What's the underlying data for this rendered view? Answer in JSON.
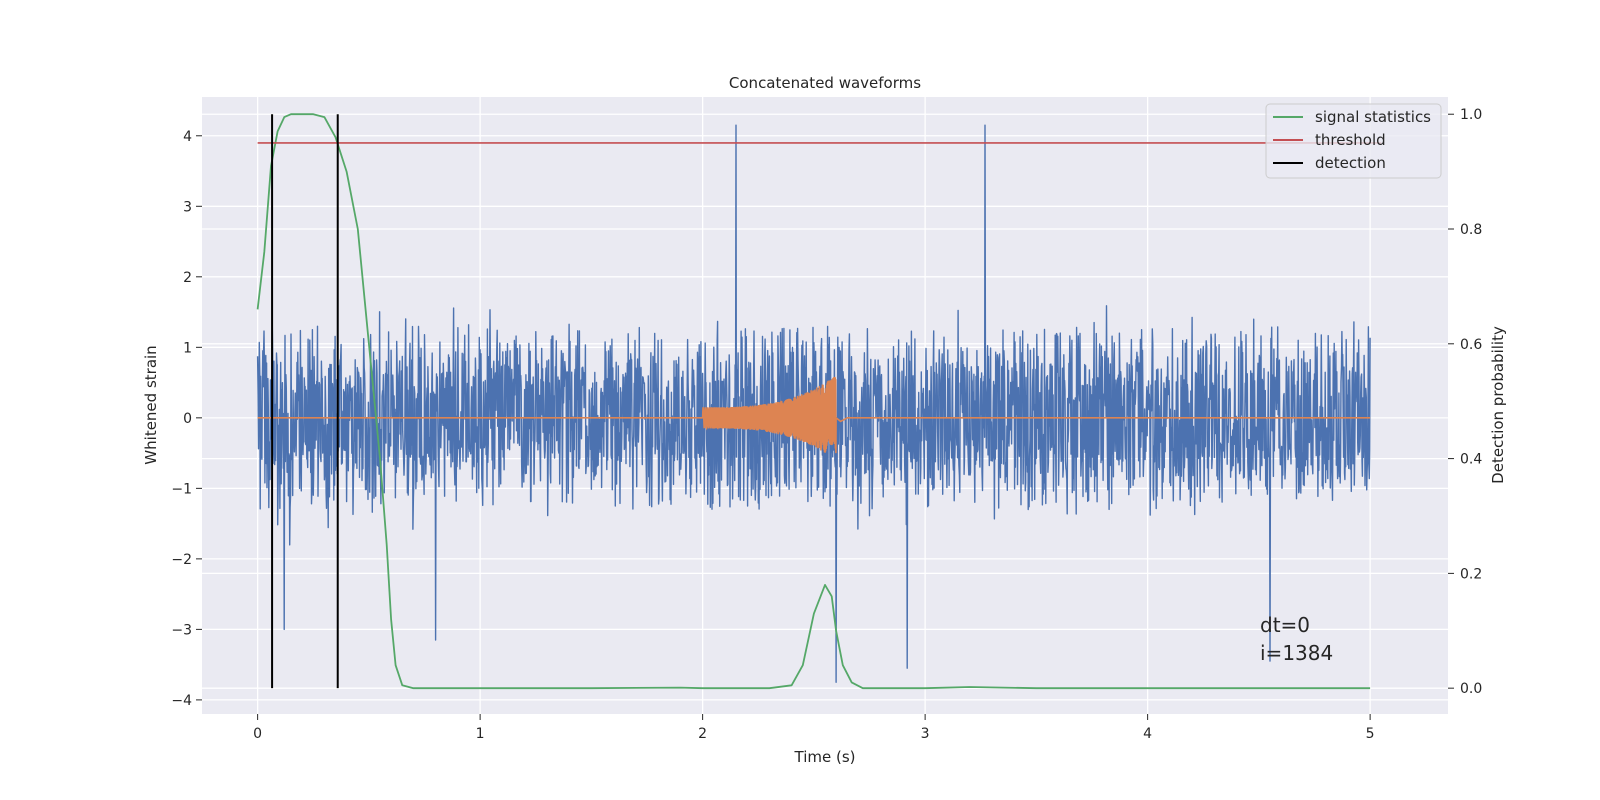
{
  "chart_data": {
    "type": "line",
    "title": "Concatenated waveforms",
    "xlabel": "Time (s)",
    "ylabel": "Whitened strain",
    "y2label": "Detection probability",
    "xlim": [
      -0.25,
      5.35
    ],
    "ylim": [
      -4.2,
      4.55
    ],
    "y2lim": [
      -0.045,
      1.03
    ],
    "xticks": [
      0,
      1,
      2,
      3,
      4,
      5
    ],
    "xtick_labels": [
      "0",
      "1",
      "2",
      "3",
      "4",
      "5"
    ],
    "yticks": [
      -4,
      -3,
      -2,
      -1,
      0,
      1,
      2,
      3,
      4
    ],
    "ytick_labels": [
      "−4",
      "−3",
      "−2",
      "−1",
      "0",
      "1",
      "2",
      "3",
      "4"
    ],
    "y2ticks": [
      0.0,
      0.2,
      0.4,
      0.6,
      0.8,
      1.0
    ],
    "y2tick_labels": [
      "0.0",
      "0.2",
      "0.4",
      "0.6",
      "0.8",
      "1.0"
    ],
    "grid": true,
    "legend_position": "top-right",
    "annotations": [
      "dt=0",
      "i=1384"
    ],
    "series": [
      {
        "kind": "noise-strain",
        "color": "#4c72b0",
        "axis": "left",
        "x_range": [
          0,
          5
        ],
        "typical_range": [
          -2.5,
          2.5
        ],
        "spikes": [
          {
            "x": 2.15,
            "y": 4.15
          },
          {
            "x": 3.27,
            "y": 4.15
          },
          {
            "x": 2.6,
            "y": -3.75
          },
          {
            "x": 2.92,
            "y": -3.55
          },
          {
            "x": 4.55,
            "y": -3.45
          },
          {
            "x": 0.8,
            "y": -3.15
          },
          {
            "x": 0.12,
            "y": -3.0
          }
        ]
      },
      {
        "kind": "injected-chirp",
        "color": "#dd8452",
        "axis": "left",
        "x_range": [
          0,
          5
        ],
        "chirp_start": 2.0,
        "chirp_end": 2.6,
        "amplitude_start": 0.15,
        "amplitude_end": 0.6
      },
      {
        "name": "signal statistics",
        "color": "#55a868",
        "axis": "right",
        "x": [
          0.0,
          0.03,
          0.06,
          0.09,
          0.12,
          0.15,
          0.2,
          0.25,
          0.3,
          0.35,
          0.4,
          0.45,
          0.5,
          0.55,
          0.58,
          0.6,
          0.62,
          0.65,
          0.7,
          1.0,
          1.5,
          1.9,
          2.0,
          2.3,
          2.4,
          2.45,
          2.5,
          2.55,
          2.58,
          2.6,
          2.63,
          2.67,
          2.72,
          3.0,
          3.2,
          3.5,
          4.0,
          4.5,
          5.0
        ],
        "values": [
          0.66,
          0.76,
          0.91,
          0.97,
          0.995,
          1.0,
          1.0,
          1.0,
          0.995,
          0.96,
          0.9,
          0.8,
          0.6,
          0.4,
          0.25,
          0.12,
          0.04,
          0.005,
          0.0,
          0.0,
          0.0,
          0.001,
          0.0,
          0.0,
          0.005,
          0.04,
          0.13,
          0.18,
          0.16,
          0.1,
          0.04,
          0.01,
          0.0,
          0.0,
          0.002,
          0.0,
          0.0,
          0.0,
          0.0
        ]
      },
      {
        "name": "threshold",
        "color": "#c44e52",
        "axis": "right",
        "x": [
          0,
          5.05
        ],
        "values": [
          0.95,
          0.95
        ]
      },
      {
        "name": "detection",
        "color": "#000000",
        "axis": "right",
        "x_positions": [
          0.065,
          0.36
        ],
        "y_range": [
          0.0,
          1.0
        ]
      }
    ]
  }
}
